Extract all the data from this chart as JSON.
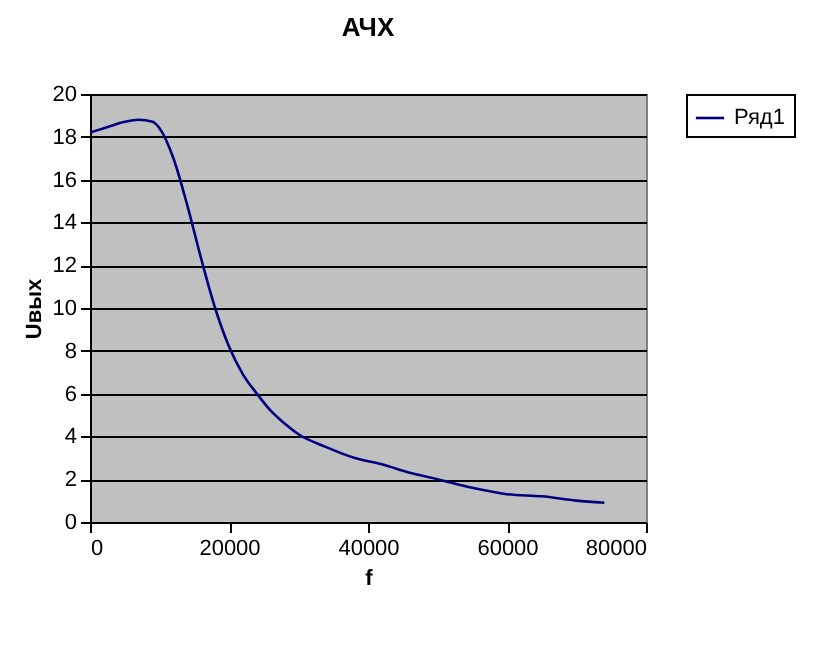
{
  "chart_data": {
    "type": "line",
    "title": "АЧХ",
    "xlabel": "f",
    "ylabel": "Uвых",
    "x": [
      0,
      2000,
      5000,
      7000,
      9000,
      10000,
      12000,
      14000,
      16000,
      18000,
      20000,
      22000,
      24000,
      26000,
      28000,
      30000,
      34000,
      38000,
      42000,
      46000,
      50000,
      55000,
      60000,
      65000,
      70000,
      74000
    ],
    "series": [
      {
        "name": "Ряд1",
        "color": "#000080",
        "values": [
          18.2,
          18.4,
          18.7,
          18.8,
          18.7,
          18.4,
          17,
          14.8,
          12.3,
          10,
          8.2,
          6.9,
          6,
          5.2,
          4.6,
          4.1,
          3.5,
          3,
          2.7,
          2.3,
          2,
          1.6,
          1.3,
          1.2,
          1.0,
          0.9
        ]
      }
    ],
    "xlim": [
      0,
      80000
    ],
    "xticks": [
      0,
      20000,
      40000,
      60000,
      80000
    ],
    "ylim": [
      0,
      20
    ],
    "yticks": [
      0,
      2,
      4,
      6,
      8,
      10,
      12,
      14,
      16,
      18,
      20
    ],
    "grid": "y",
    "legend": "right",
    "marker": "none",
    "line_style": "solid"
  }
}
